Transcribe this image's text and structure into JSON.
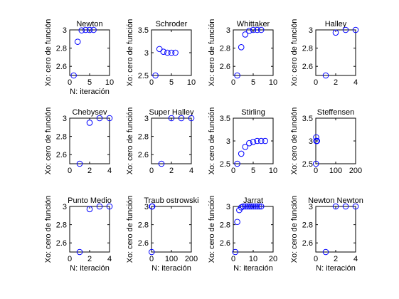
{
  "figure": {
    "background": "#ffffff",
    "marker_color": "#0000ff",
    "marker_shape": "circle-open"
  },
  "chart_data": [
    {
      "type": "scatter",
      "title": "Newton",
      "xlabel": "N: iteración",
      "ylabel": "Xo: cero de función",
      "xlim": [
        0,
        10
      ],
      "ylim": [
        2.5,
        3
      ],
      "xticks": [
        0,
        5,
        10
      ],
      "yticks": [
        2.6,
        2.8,
        3
      ],
      "x": [
        1,
        2,
        3,
        4,
        5,
        6
      ],
      "y": [
        2.5,
        2.87,
        2.995,
        3.0,
        3.0,
        3.0
      ]
    },
    {
      "type": "scatter",
      "title": "Schroder",
      "xlabel": "",
      "ylabel": "Xo: cero de función",
      "xlim": [
        0,
        10
      ],
      "ylim": [
        2.5,
        3.5
      ],
      "xticks": [
        0,
        5,
        10
      ],
      "yticks": [
        2.5,
        3,
        3.5
      ],
      "x": [
        1,
        2,
        3,
        4,
        5,
        6
      ],
      "y": [
        2.5,
        3.08,
        3.02,
        3.0,
        3.0,
        3.0
      ]
    },
    {
      "type": "scatter",
      "title": "Whittaker",
      "xlabel": "",
      "ylabel": "Xo: cero de función",
      "xlim": [
        0,
        10
      ],
      "ylim": [
        2.5,
        3
      ],
      "xticks": [
        0,
        5,
        10
      ],
      "yticks": [
        2.6,
        2.8,
        3
      ],
      "x": [
        1,
        2,
        3,
        4,
        5,
        6,
        7
      ],
      "y": [
        2.5,
        2.81,
        2.95,
        2.99,
        3.0,
        3.0,
        3.0
      ]
    },
    {
      "type": "scatter",
      "title": "Halley",
      "xlabel": "",
      "ylabel": "Xo: cero de función",
      "xlim": [
        0,
        4
      ],
      "ylim": [
        2.5,
        3
      ],
      "xticks": [
        0,
        2,
        4
      ],
      "yticks": [
        2.6,
        2.8,
        3
      ],
      "x": [
        1,
        2,
        3,
        4
      ],
      "y": [
        2.5,
        2.97,
        3.0,
        3.0
      ]
    },
    {
      "type": "scatter",
      "title": "Chebysev",
      "xlabel": "",
      "ylabel": "Xo: cero de función",
      "xlim": [
        0,
        4
      ],
      "ylim": [
        2.5,
        3
      ],
      "xticks": [
        0,
        2,
        4
      ],
      "yticks": [
        2.6,
        2.8,
        3
      ],
      "x": [
        1,
        2,
        3,
        4
      ],
      "y": [
        2.5,
        2.95,
        3.0,
        3.0
      ]
    },
    {
      "type": "scatter",
      "title": "Super Halley",
      "xlabel": "",
      "ylabel": "Xo: cero de función",
      "xlim": [
        0,
        4
      ],
      "ylim": [
        2.5,
        3
      ],
      "xticks": [
        0,
        2,
        4
      ],
      "yticks": [
        2.6,
        2.8,
        3
      ],
      "x": [
        1,
        2,
        3,
        4
      ],
      "y": [
        2.5,
        3.0,
        3.0,
        3.0
      ]
    },
    {
      "type": "scatter",
      "title": "Stirling",
      "xlabel": "",
      "ylabel": "Xo: cero de función",
      "xlim": [
        0,
        10
      ],
      "ylim": [
        2.5,
        3.5
      ],
      "xticks": [
        0,
        5,
        10
      ],
      "yticks": [
        2.5,
        3,
        3.5
      ],
      "x": [
        1,
        2,
        3,
        4,
        5,
        6,
        7,
        8
      ],
      "y": [
        2.5,
        2.72,
        2.87,
        2.95,
        2.98,
        3.0,
        3.0,
        3.0
      ]
    },
    {
      "type": "scatter",
      "title": "Steffensen",
      "xlabel": "",
      "ylabel": "Xo: cero de función",
      "xlim": [
        0,
        200
      ],
      "ylim": [
        2.5,
        3.5
      ],
      "xticks": [
        0,
        100,
        200
      ],
      "yticks": [
        2.5,
        3,
        3.5
      ],
      "x": [
        1,
        2,
        3,
        4,
        5,
        6
      ],
      "y": [
        2.5,
        3.08,
        3.0,
        3.0,
        3.0,
        3.0
      ]
    },
    {
      "type": "scatter",
      "title": "Punto Medio",
      "xlabel": "N: iteración",
      "ylabel": "Xo: cero de función",
      "xlim": [
        0,
        4
      ],
      "ylim": [
        2.5,
        3
      ],
      "xticks": [
        0,
        2,
        4
      ],
      "yticks": [
        2.6,
        2.8,
        3
      ],
      "x": [
        1,
        2,
        3,
        4
      ],
      "y": [
        2.5,
        2.97,
        3.0,
        3.0
      ]
    },
    {
      "type": "scatter",
      "title": "Traub ostrowski",
      "xlabel": "N: iteración",
      "ylabel": "Xo: cero de función",
      "xlim": [
        0,
        200
      ],
      "ylim": [
        2.5,
        3
      ],
      "xticks": [
        0,
        100,
        200
      ],
      "yticks": [
        2.6,
        2.8,
        3
      ],
      "x": [
        1,
        2,
        3,
        4
      ],
      "y": [
        2.5,
        3.0,
        3.0,
        3.0
      ]
    },
    {
      "type": "scatter",
      "title": "Jarrat",
      "xlabel": "N: iteración",
      "ylabel": "Xo: cero de función",
      "xlim": [
        0,
        20
      ],
      "ylim": [
        2.5,
        3
      ],
      "xticks": [
        0,
        10,
        20
      ],
      "yticks": [
        2.6,
        2.8,
        3
      ],
      "x": [
        1,
        2,
        3,
        4,
        5,
        6,
        7,
        8,
        9,
        10,
        11,
        12,
        13,
        14
      ],
      "y": [
        2.5,
        2.83,
        2.96,
        2.99,
        3.0,
        3.0,
        3.0,
        3.0,
        3.0,
        3.0,
        3.0,
        3.0,
        3.0,
        3.0
      ]
    },
    {
      "type": "scatter",
      "title": "Newton Newton",
      "xlabel": "N: iteración",
      "ylabel": "Xo: cero de función",
      "xlim": [
        0,
        4
      ],
      "ylim": [
        2.5,
        3
      ],
      "xticks": [
        0,
        2,
        4
      ],
      "yticks": [
        2.6,
        2.8,
        3
      ],
      "x": [
        1,
        2,
        3,
        4
      ],
      "y": [
        2.5,
        3.0,
        3.0,
        3.0
      ]
    }
  ]
}
